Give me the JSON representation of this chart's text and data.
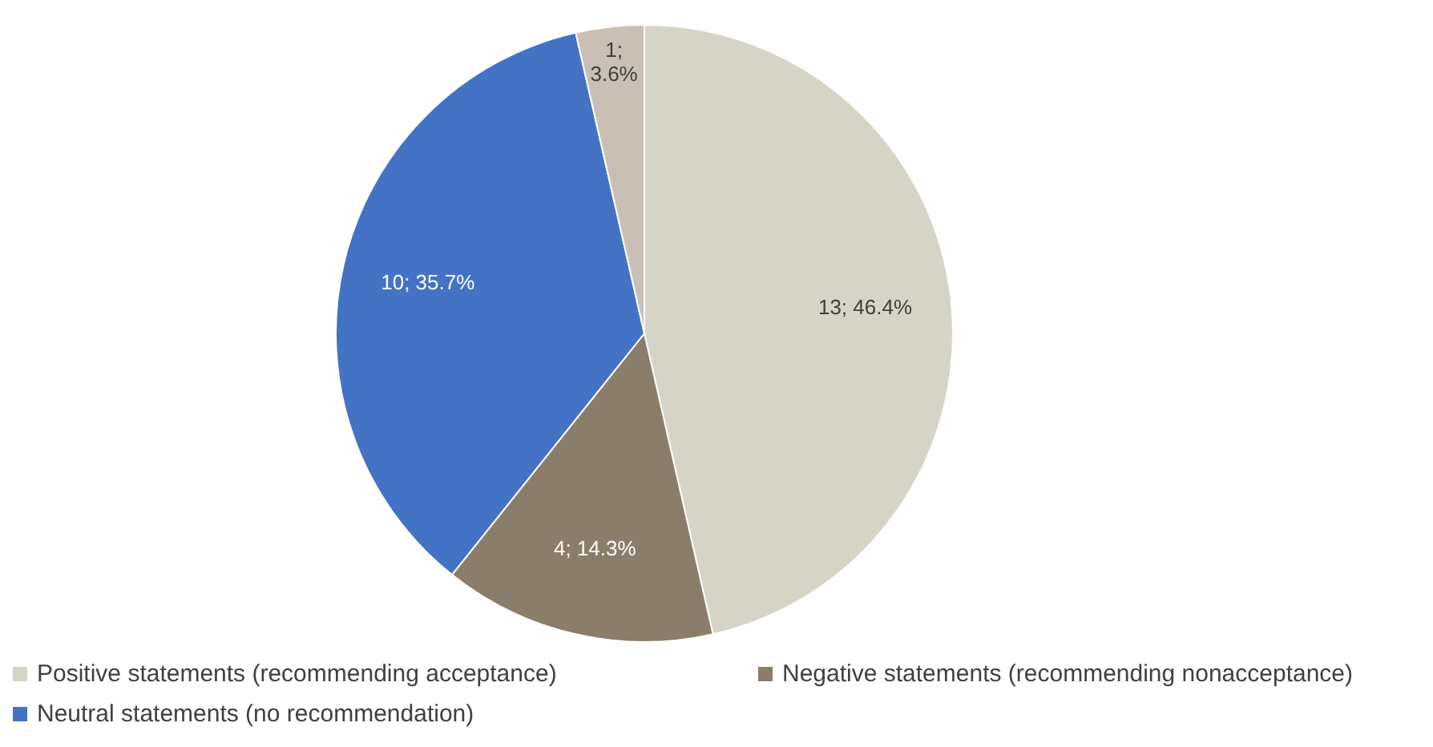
{
  "chart_data": {
    "type": "pie",
    "categories": [
      "Positive statements (recommending acceptance)",
      "Negative statements (recommending nonacceptance)",
      "Neutral statements (no recommendation)",
      null
    ],
    "values": [
      13,
      4,
      10,
      1
    ],
    "colors": [
      "#d6d4c6",
      "#8b7d6b",
      "#4472c4",
      "#c9bfb5"
    ],
    "value_labels": [
      "13; 46.4%",
      "4; 14.3%",
      "10; 35.7%",
      "1; 3.6%"
    ],
    "legend": "bottom"
  }
}
